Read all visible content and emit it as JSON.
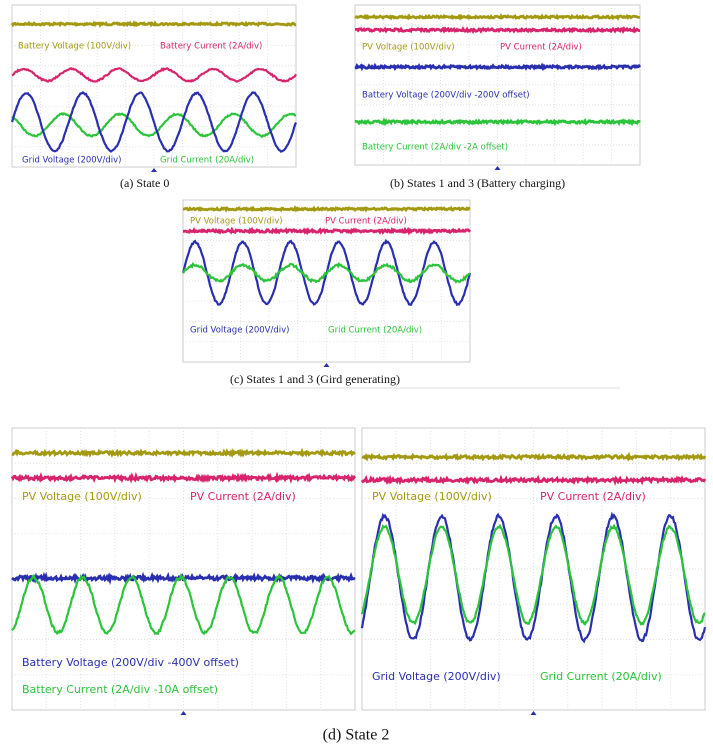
{
  "figures": [
    {
      "caption": "(a) State 0",
      "screens": [
        {
          "labels": [
            "Battery Voltage (100V/div)",
            "Battery Current (2A/div)",
            "Grid Voltage (200V/div)",
            "Grid Current (20A/div)"
          ]
        }
      ]
    },
    {
      "caption": "(b) States 1 and 3 (Battery charging)",
      "screens": [
        {
          "labels": [
            "PV Voltage (100V/div)",
            "PV Current (2A/div)",
            "Battery Voltage (200V/div -200V offset)",
            "Battery Current (2A/div -2A offset)"
          ]
        }
      ]
    },
    {
      "caption": "(c) States 1 and 3 (Gird generating)",
      "screens": [
        {
          "labels": [
            "PV Voltage (100V/div)",
            "PV Current (2A/div)",
            "Grid Voltage (200V/div)",
            "Grid Current (20A/div)"
          ]
        }
      ]
    },
    {
      "caption": "(d) State 2",
      "screens": [
        {
          "labels": [
            "PV Voltage (100V/div)",
            "PV Current (2A/div)",
            "Battery Voltage (200V/div -400V offset)",
            "Battery Current (2A/div -10A offset)"
          ]
        },
        {
          "labels": [
            "PV Voltage (100V/div)",
            "PV Current (2A/div)",
            "Grid Voltage (200V/div)",
            "Grid Current (20A/div)"
          ]
        }
      ]
    }
  ]
}
